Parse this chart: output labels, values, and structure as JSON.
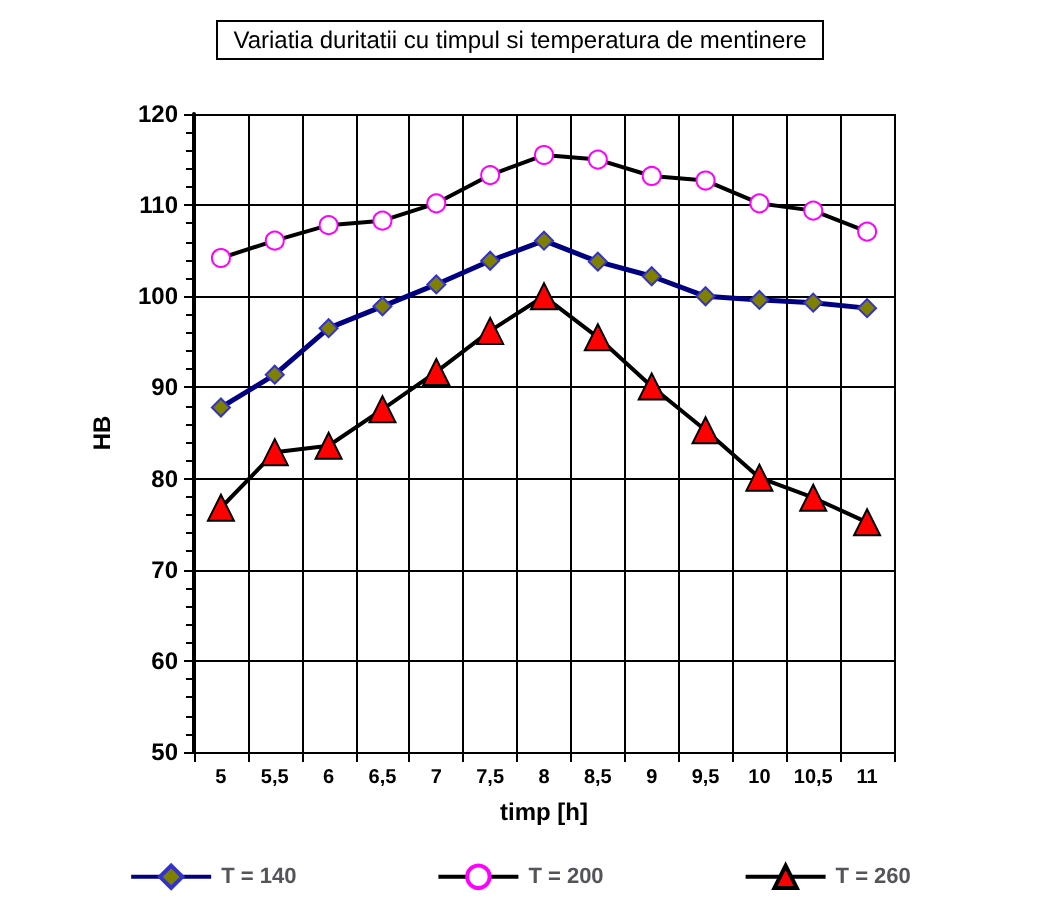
{
  "chart_data": {
    "type": "line",
    "title": "Variatia duritatii cu timpul si temperatura de mentinere",
    "xlabel": "timp [h]",
    "ylabel": "HB",
    "categories": [
      "5",
      "5,5",
      "6",
      "6,5",
      "7",
      "7,5",
      "8",
      "8,5",
      "9",
      "9,5",
      "10",
      "10,5",
      "11"
    ],
    "series": [
      {
        "name": "T = 140",
        "color": "#000080",
        "marker": "diamond",
        "values": [
          87.8,
          91.4,
          96.5,
          98.9,
          101.3,
          103.9,
          106.1,
          103.8,
          102.2,
          100.0,
          99.6,
          99.3,
          98.7
        ]
      },
      {
        "name": "T = 200",
        "color": "#000000",
        "marker": "circle",
        "values": [
          104.2,
          106.1,
          107.8,
          108.3,
          110.2,
          113.3,
          115.5,
          115.0,
          113.2,
          112.7,
          110.2,
          109.4,
          107.1
        ]
      },
      {
        "name": "T = 260",
        "color": "#000000",
        "marker": "triangle",
        "values": [
          76.8,
          82.9,
          83.6,
          87.6,
          91.7,
          96.2,
          100.0,
          95.5,
          90.1,
          85.3,
          80.1,
          77.9,
          75.2
        ]
      }
    ],
    "ylim": [
      50,
      120
    ],
    "yticks": [
      50,
      60,
      70,
      80,
      90,
      100,
      110,
      120
    ],
    "grid": true,
    "legend": "bottom"
  }
}
